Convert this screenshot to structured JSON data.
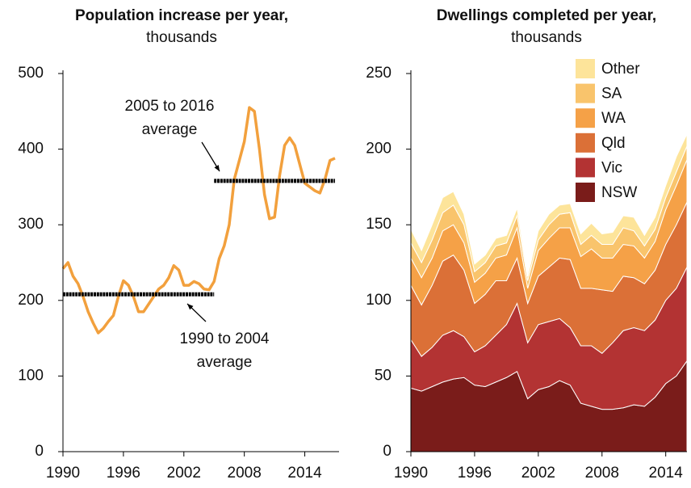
{
  "chart_data": [
    {
      "type": "line",
      "title": "Population increase per year,",
      "subtitle": "thousands",
      "x": [
        1990,
        1990.5,
        1991,
        1991.5,
        1992,
        1992.5,
        1993,
        1993.5,
        1994,
        1994.5,
        1995,
        1995.5,
        1996,
        1996.5,
        1997,
        1997.5,
        1998,
        1998.5,
        1999,
        1999.5,
        2000,
        2000.5,
        2001,
        2001.5,
        2002,
        2002.5,
        2003,
        2003.5,
        2004,
        2004.5,
        2005,
        2005.5,
        2006,
        2006.5,
        2007,
        2007.5,
        2008,
        2008.5,
        2009,
        2009.5,
        2010,
        2010.5,
        2011,
        2011.5,
        2012,
        2012.5,
        2013,
        2013.5,
        2014,
        2014.5,
        2015,
        2015.5,
        2016,
        2016.5,
        2017
      ],
      "series": [
        {
          "color": "#f2a03d",
          "values": [
            242,
            250,
            232,
            222,
            205,
            185,
            170,
            157,
            163,
            172,
            180,
            205,
            226,
            220,
            205,
            185,
            185,
            195,
            205,
            215,
            220,
            230,
            246,
            240,
            220,
            220,
            225,
            222,
            215,
            214,
            225,
            255,
            272,
            300,
            360,
            385,
            410,
            455,
            450,
            400,
            340,
            308,
            310,
            365,
            405,
            415,
            405,
            380,
            355,
            350,
            345,
            342,
            360,
            385,
            388
          ]
        }
      ],
      "averages": [
        {
          "text": [
            "1990 to 2004",
            "average"
          ],
          "x": [
            1990,
            2005
          ],
          "value": 208,
          "color": "#000000"
        },
        {
          "text": [
            "2005 to 2016",
            "average"
          ],
          "x": [
            2005,
            2017
          ],
          "value": 358,
          "color": "#000000"
        }
      ],
      "xlim": [
        1990,
        2017.4
      ],
      "xticks": [
        1990,
        1996,
        2002,
        2008,
        2014
      ],
      "ylim": [
        0,
        500
      ],
      "yticks": [
        0,
        100,
        200,
        300,
        400,
        500
      ]
    },
    {
      "type": "stacked_area",
      "title": "Dwellings completed per year,",
      "subtitle": "thousands",
      "x": [
        1990,
        1991,
        1992,
        1993,
        1994,
        1995,
        1996,
        1997,
        1998,
        1999,
        2000,
        2001,
        2002,
        2003,
        2004,
        2005,
        2006,
        2007,
        2008,
        2009,
        2010,
        2011,
        2012,
        2013,
        2014,
        2015,
        2016
      ],
      "series": [
        {
          "name": "NSW",
          "color": "#7a1c1a",
          "values": [
            42,
            40,
            43,
            46,
            48,
            49,
            44,
            43,
            46,
            49,
            53,
            35,
            41,
            43,
            47,
            44,
            32,
            30,
            28,
            28,
            29,
            31,
            30,
            36,
            45,
            50,
            60
          ]
        },
        {
          "name": "Vic",
          "color": "#b33333",
          "values": [
            32,
            23,
            26,
            31,
            32,
            27,
            22,
            27,
            31,
            35,
            45,
            37,
            43,
            43,
            41,
            38,
            38,
            40,
            37,
            44,
            51,
            51,
            50,
            51,
            55,
            58,
            62
          ]
        },
        {
          "name": "Qld",
          "color": "#db7037",
          "values": [
            36,
            34,
            41,
            49,
            50,
            44,
            32,
            34,
            36,
            29,
            30,
            26,
            32,
            36,
            40,
            45,
            38,
            38,
            42,
            34,
            36,
            33,
            31,
            33,
            37,
            42,
            43
          ]
        },
        {
          "name": "WA",
          "color": "#f5a147",
          "values": [
            18,
            18,
            18,
            20,
            20,
            18,
            14,
            14,
            15,
            17,
            20,
            10,
            17,
            19,
            20,
            21,
            21,
            26,
            21,
            22,
            21,
            21,
            17,
            19,
            23,
            26,
            28
          ]
        },
        {
          "name": "SA",
          "color": "#f9c46c",
          "values": [
            10,
            10,
            12,
            12,
            13,
            12,
            7,
            7,
            8,
            8,
            8,
            5,
            7,
            9,
            9,
            10,
            8,
            9,
            9,
            9,
            11,
            10,
            8,
            8,
            8,
            9,
            9
          ]
        },
        {
          "name": "Other",
          "color": "#fde49a",
          "values": [
            9,
            8,
            10,
            10,
            9,
            7,
            5,
            5,
            5,
            5,
            5,
            3,
            6,
            7,
            6,
            6,
            7,
            8,
            7,
            8,
            8,
            9,
            7,
            8,
            8,
            10,
            8
          ]
        }
      ],
      "xlim": [
        1990,
        2016
      ],
      "xticks": [
        1990,
        1996,
        2002,
        2008,
        2014
      ],
      "ylim": [
        0,
        250
      ],
      "yticks": [
        0,
        50,
        100,
        150,
        200,
        250
      ]
    }
  ]
}
